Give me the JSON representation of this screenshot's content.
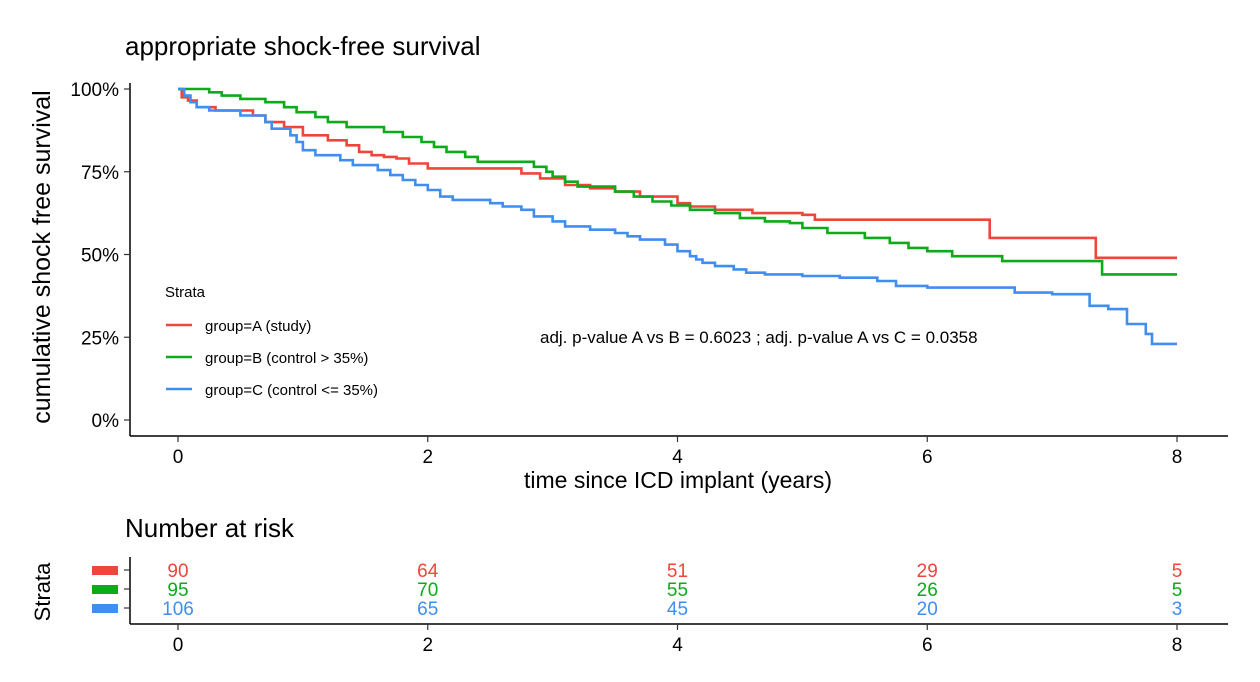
{
  "chart_data": [
    {
      "type": "line",
      "subtype": "kaplan-meier step",
      "title": "appropriate shock-free survival",
      "xlabel": "time since ICD implant (years)",
      "ylabel": "cumulative shock free survival",
      "xlim": [
        0,
        8
      ],
      "ylim": [
        0,
        1
      ],
      "xticks": [
        "0",
        "2",
        "4",
        "6",
        "8"
      ],
      "yticks": [
        "0%",
        "25%",
        "50%",
        "75%",
        "100%"
      ],
      "grid": false,
      "legend": {
        "title": "Strata",
        "placement": "left, inside plot",
        "entries": [
          "group=A (study)",
          "group=B (control > 35%)",
          "group=C (control <= 35%)"
        ]
      },
      "annotation": "adj. p-value A vs B = 0.6023 ; adj. p-value A vs C = 0.0358",
      "series": [
        {
          "name": "group=A (study)",
          "color": "#F0453A",
          "points": [
            [
              0,
              1.0
            ],
            [
              0.03,
              0.975
            ],
            [
              0.08,
              0.965
            ],
            [
              0.15,
              0.945
            ],
            [
              0.3,
              0.935
            ],
            [
              0.6,
              0.92
            ],
            [
              0.7,
              0.9
            ],
            [
              0.85,
              0.885
            ],
            [
              1.0,
              0.86
            ],
            [
              1.2,
              0.845
            ],
            [
              1.35,
              0.83
            ],
            [
              1.45,
              0.81
            ],
            [
              1.55,
              0.8
            ],
            [
              1.65,
              0.795
            ],
            [
              1.75,
              0.79
            ],
            [
              1.85,
              0.775
            ],
            [
              2.0,
              0.76
            ],
            [
              2.5,
              0.76
            ],
            [
              2.75,
              0.745
            ],
            [
              2.9,
              0.73
            ],
            [
              3.1,
              0.71
            ],
            [
              3.3,
              0.7
            ],
            [
              3.5,
              0.69
            ],
            [
              3.7,
              0.675
            ],
            [
              4.0,
              0.655
            ],
            [
              4.1,
              0.645
            ],
            [
              4.3,
              0.635
            ],
            [
              4.6,
              0.625
            ],
            [
              5.0,
              0.62
            ],
            [
              5.1,
              0.605
            ],
            [
              6.42,
              0.605
            ],
            [
              6.5,
              0.55
            ],
            [
              7.3,
              0.55
            ],
            [
              7.35,
              0.49
            ],
            [
              8.0,
              0.49
            ]
          ]
        },
        {
          "name": "group=B (control > 35%)",
          "color": "#0DAA1A",
          "points": [
            [
              0,
              1.0
            ],
            [
              0.25,
              0.99
            ],
            [
              0.35,
              0.98
            ],
            [
              0.5,
              0.97
            ],
            [
              0.7,
              0.96
            ],
            [
              0.85,
              0.945
            ],
            [
              0.95,
              0.93
            ],
            [
              1.1,
              0.915
            ],
            [
              1.2,
              0.9
            ],
            [
              1.35,
              0.885
            ],
            [
              1.65,
              0.87
            ],
            [
              1.8,
              0.855
            ],
            [
              1.95,
              0.84
            ],
            [
              2.05,
              0.825
            ],
            [
              2.15,
              0.81
            ],
            [
              2.3,
              0.795
            ],
            [
              2.4,
              0.78
            ],
            [
              2.85,
              0.765
            ],
            [
              2.95,
              0.75
            ],
            [
              3.0,
              0.735
            ],
            [
              3.1,
              0.72
            ],
            [
              3.2,
              0.705
            ],
            [
              3.5,
              0.69
            ],
            [
              3.65,
              0.675
            ],
            [
              3.8,
              0.66
            ],
            [
              3.95,
              0.648
            ],
            [
              4.1,
              0.635
            ],
            [
              4.3,
              0.625
            ],
            [
              4.5,
              0.61
            ],
            [
              4.7,
              0.6
            ],
            [
              4.9,
              0.595
            ],
            [
              5.0,
              0.58
            ],
            [
              5.2,
              0.565
            ],
            [
              5.5,
              0.55
            ],
            [
              5.7,
              0.535
            ],
            [
              5.85,
              0.52
            ],
            [
              6.0,
              0.51
            ],
            [
              6.2,
              0.495
            ],
            [
              6.6,
              0.48
            ],
            [
              7.4,
              0.44
            ],
            [
              8.0,
              0.44
            ]
          ]
        },
        {
          "name": "group=C (control <= 35%)",
          "color": "#3F8EF0",
          "points": [
            [
              0,
              1.0
            ],
            [
              0.05,
              0.98
            ],
            [
              0.1,
              0.96
            ],
            [
              0.15,
              0.945
            ],
            [
              0.25,
              0.935
            ],
            [
              0.5,
              0.92
            ],
            [
              0.7,
              0.9
            ],
            [
              0.75,
              0.88
            ],
            [
              0.9,
              0.86
            ],
            [
              0.95,
              0.84
            ],
            [
              1.0,
              0.815
            ],
            [
              1.1,
              0.8
            ],
            [
              1.3,
              0.785
            ],
            [
              1.4,
              0.77
            ],
            [
              1.6,
              0.755
            ],
            [
              1.7,
              0.74
            ],
            [
              1.8,
              0.725
            ],
            [
              1.9,
              0.71
            ],
            [
              2.0,
              0.695
            ],
            [
              2.1,
              0.675
            ],
            [
              2.2,
              0.665
            ],
            [
              2.5,
              0.655
            ],
            [
              2.6,
              0.645
            ],
            [
              2.75,
              0.635
            ],
            [
              2.85,
              0.615
            ],
            [
              3.0,
              0.6
            ],
            [
              3.1,
              0.585
            ],
            [
              3.3,
              0.575
            ],
            [
              3.5,
              0.565
            ],
            [
              3.6,
              0.555
            ],
            [
              3.7,
              0.545
            ],
            [
              3.9,
              0.53
            ],
            [
              4.0,
              0.51
            ],
            [
              4.1,
              0.495
            ],
            [
              4.15,
              0.485
            ],
            [
              4.2,
              0.475
            ],
            [
              4.3,
              0.465
            ],
            [
              4.45,
              0.455
            ],
            [
              4.55,
              0.445
            ],
            [
              4.7,
              0.44
            ],
            [
              5.0,
              0.435
            ],
            [
              5.3,
              0.43
            ],
            [
              5.6,
              0.42
            ],
            [
              5.75,
              0.405
            ],
            [
              6.0,
              0.4
            ],
            [
              6.7,
              0.385
            ],
            [
              7.0,
              0.38
            ],
            [
              7.3,
              0.345
            ],
            [
              7.45,
              0.335
            ],
            [
              7.6,
              0.29
            ],
            [
              7.75,
              0.26
            ],
            [
              7.8,
              0.23
            ],
            [
              8.0,
              0.23
            ]
          ]
        }
      ]
    },
    {
      "type": "table",
      "title": "Number at risk",
      "ylabel": "Strata",
      "xticks": [
        "0",
        "2",
        "4",
        "6",
        "8"
      ],
      "rows": [
        {
          "color": "#F0453A",
          "values": [
            "90",
            "64",
            "51",
            "29",
            "5"
          ]
        },
        {
          "color": "#0DAA1A",
          "values": [
            "95",
            "70",
            "55",
            "26",
            "5"
          ]
        },
        {
          "color": "#3F8EF0",
          "values": [
            "106",
            "65",
            "45",
            "20",
            "3"
          ]
        }
      ]
    }
  ]
}
